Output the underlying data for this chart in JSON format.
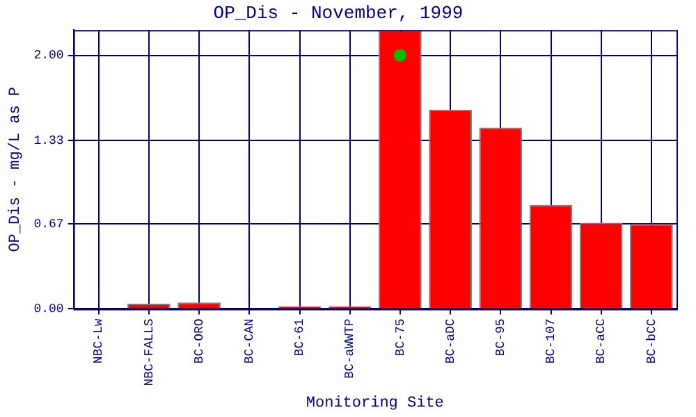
{
  "chart_data": {
    "type": "bar",
    "title": "OP_Dis - November, 1999",
    "xlabel": "Monitoring Site",
    "ylabel": "OP_Dis - mg/L as P",
    "categories": [
      "NBC-Lw",
      "NBC-FALLS",
      "BC-ORO",
      "BC-CAN",
      "BC-61",
      "BC-aWWTP",
      "BC-75",
      "BC-aDC",
      "BC-95",
      "BC-107",
      "BC-aCC",
      "BC-bCC"
    ],
    "series": [
      {
        "color": "#ff0000",
        "values": [
          0,
          0.04,
          0.05,
          0,
          0.02,
          0.02,
          2.2,
          1.57,
          1.43,
          0.82,
          0.68,
          0.67
        ]
      },
      {
        "type": "scatter",
        "color": "#00c000",
        "x": [
          "BC-75"
        ],
        "values": [
          2.0
        ],
        "marker": "circle"
      }
    ],
    "ylim": [
      0,
      2.2
    ],
    "yticks": [
      {
        "value": 0,
        "label": "0.00"
      },
      0.67,
      1.33,
      {
        "value": 2,
        "label": "2.00"
      }
    ],
    "grid": true,
    "legend": false
  }
}
